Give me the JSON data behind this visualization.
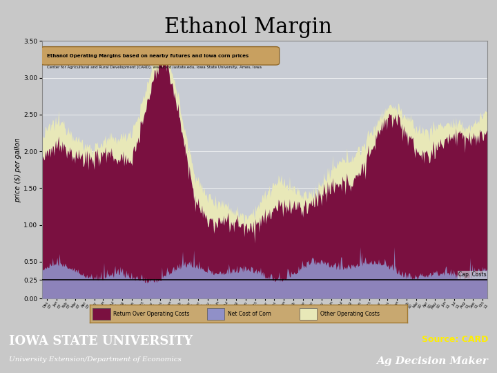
{
  "title": "Ethanol Margin",
  "chart_subtitle": "Ethanol Operating Margins based on nearby futures and Iowa corn prices",
  "chart_source_text": "Center for Agricultural and Rural Development (CARD), www.card.iastate.edu, Iowa State University, Ames, Iowa",
  "ylabel": "price ($) per gallon",
  "ylim": [
    0.0,
    3.5
  ],
  "yticks": [
    0.0,
    0.25,
    0.5,
    1.0,
    1.5,
    2.0,
    2.5,
    3.0,
    3.5
  ],
  "hline_y": 0.25,
  "hline_label": "Cap. Costs",
  "fig_bg_color": "#c8c8c8",
  "plot_bg_color": "#c8ccd4",
  "color_return": "#7a1040",
  "color_corn": "#9090c8",
  "color_other": "#e8e8b8",
  "legend_bg": "#c8a870",
  "legend_border": "#a07830",
  "legend_items": [
    "Return Over Operating Costs",
    "Net Cost of Corn",
    "Other Operating Costs"
  ],
  "footer_bg": "#cc1111",
  "title_fontsize": 22,
  "ylabel_fontsize": 7,
  "n_points": 600
}
